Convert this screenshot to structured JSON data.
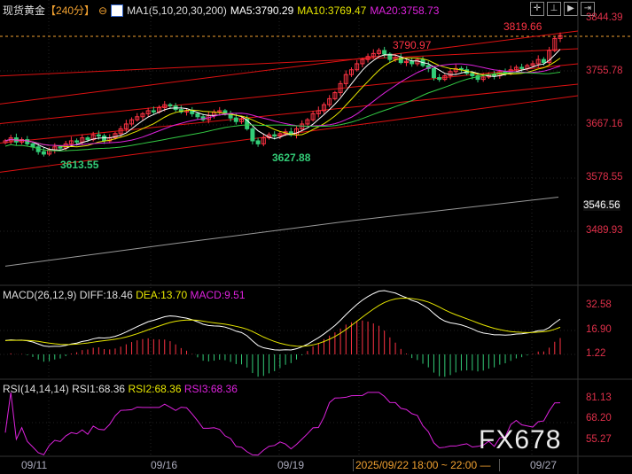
{
  "header": {
    "symbol": "现货黄金",
    "period": "【240分】",
    "indicator": "MA1(5,10,20,30,200)",
    "ma5": "MA5:3790.29",
    "ma10": "MA10:3769.47",
    "ma20": "MA20:3758.73"
  },
  "toolbar": {
    "icons": [
      "crosshair-icon",
      "zoom-range-icon",
      "play-icon",
      "step-forward-icon"
    ]
  },
  "price_axis": [
    "3844.39",
    "3755.78",
    "3667.16",
    "3578.55",
    "3489.93"
  ],
  "ma200_label": "3546.56",
  "annotations": {
    "high_last": "3819.66",
    "high_mid": "3790.97",
    "low_left": "3613.55",
    "low_mid": "3627.88"
  },
  "macd": {
    "title": "MACD(26,12,9)",
    "diff": "DIFF:18.46",
    "dea": "DEA:13.70",
    "macd": "MACD:9.51",
    "axis": [
      "32.58",
      "16.90",
      "1.22"
    ]
  },
  "rsi": {
    "title": "RSI(14,14,14)",
    "rsi1": "RSI1:68.36",
    "rsi2": "RSI2:68.36",
    "rsi3": "RSI3:68.36",
    "axis": [
      "81.13",
      "68.20",
      "55.27"
    ]
  },
  "date_axis": [
    "09/11",
    "09/16",
    "09/19",
    "09/27"
  ],
  "time_range": "2025/09/22 18:00 ~ 22:00 —",
  "watermark": "FX678",
  "colors": {
    "up": "#ff3344",
    "down": "#33cc77",
    "ma5": "#ffffff",
    "ma10": "#e6e600",
    "ma20": "#dd22dd",
    "ma30": "#33cc44",
    "ma200": "#999999"
  },
  "chart_data": {
    "type": "candlestick",
    "ylim": [
      3489.93,
      3844.39
    ],
    "closes": [
      3640,
      3645,
      3638,
      3642,
      3635,
      3630,
      3622,
      3618,
      3625,
      3630,
      3628,
      3635,
      3640,
      3638,
      3645,
      3642,
      3650,
      3648,
      3640,
      3645,
      3652,
      3660,
      3668,
      3675,
      3680,
      3685,
      3690,
      3688,
      3695,
      3700,
      3698,
      3692,
      3688,
      3690,
      3685,
      3680,
      3675,
      3682,
      3688,
      3690,
      3685,
      3678,
      3672,
      3676,
      3660,
      3640,
      3635,
      3645,
      3650,
      3648,
      3652,
      3655,
      3650,
      3660,
      3668,
      3675,
      3685,
      3690,
      3700,
      3710,
      3720,
      3735,
      3750,
      3758,
      3768,
      3775,
      3780,
      3785,
      3790,
      3784,
      3775,
      3778,
      3770,
      3772,
      3768,
      3775,
      3765,
      3760,
      3745,
      3742,
      3748,
      3755,
      3760,
      3758,
      3752,
      3748,
      3742,
      3746,
      3750,
      3748,
      3755,
      3752,
      3758,
      3762,
      3760,
      3765,
      3768,
      3775,
      3770,
      3790,
      3810,
      3815
    ]
  }
}
